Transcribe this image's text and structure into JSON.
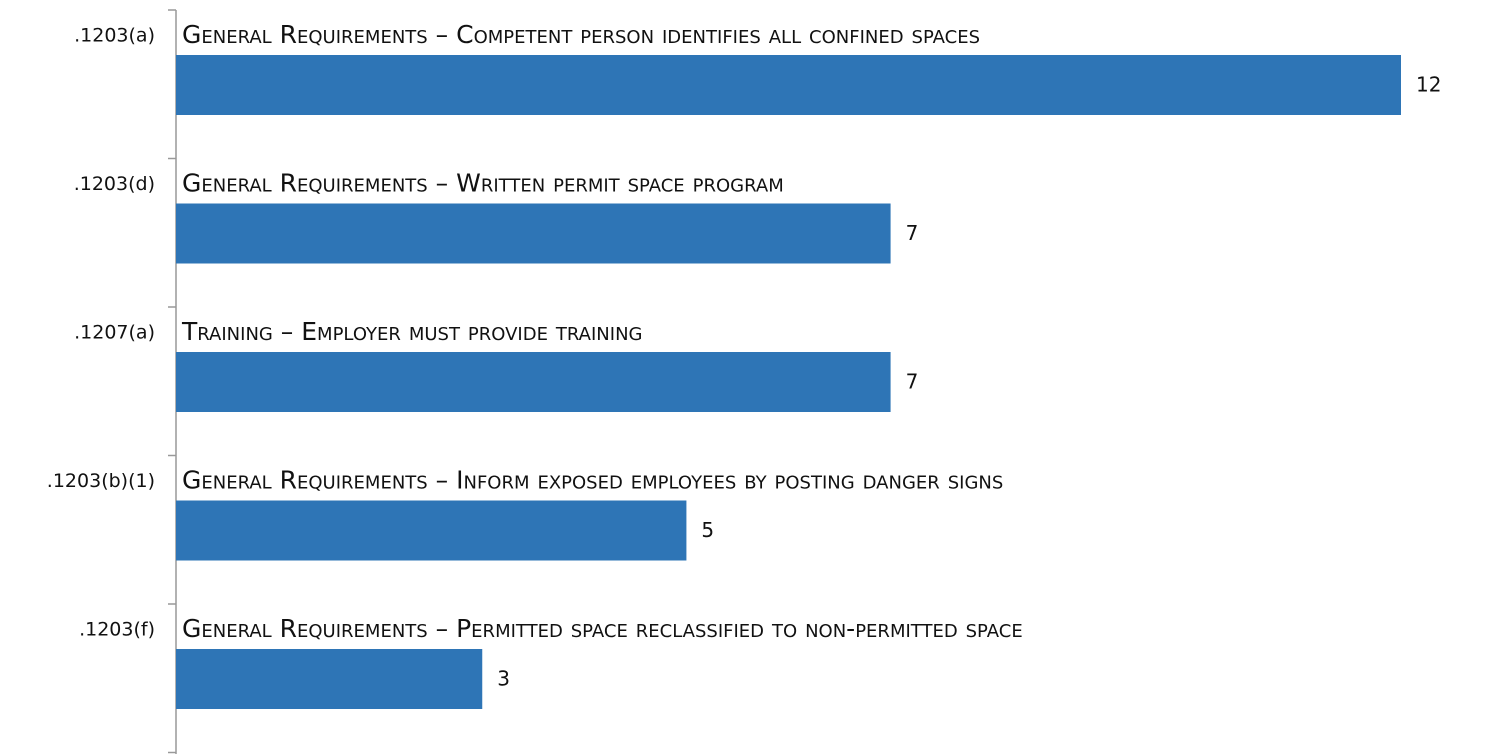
{
  "chart_data": {
    "type": "barh",
    "categories": [
      ".1203(a)",
      ".1203(d)",
      ".1207(a)",
      ".1203(b)(1)",
      ".1203(f)"
    ],
    "descriptions": [
      "General Requirements – Competent person identifies all confined spaces",
      "General Requirements – Written permit space program",
      "Training – Employer must provide training",
      "General Requirements – Inform exposed employees by posting danger signs",
      "General Requirements – Permitted space reclassified to non-permitted space"
    ],
    "values": [
      12,
      7,
      7,
      5,
      3
    ],
    "color": "#2e75b6"
  }
}
